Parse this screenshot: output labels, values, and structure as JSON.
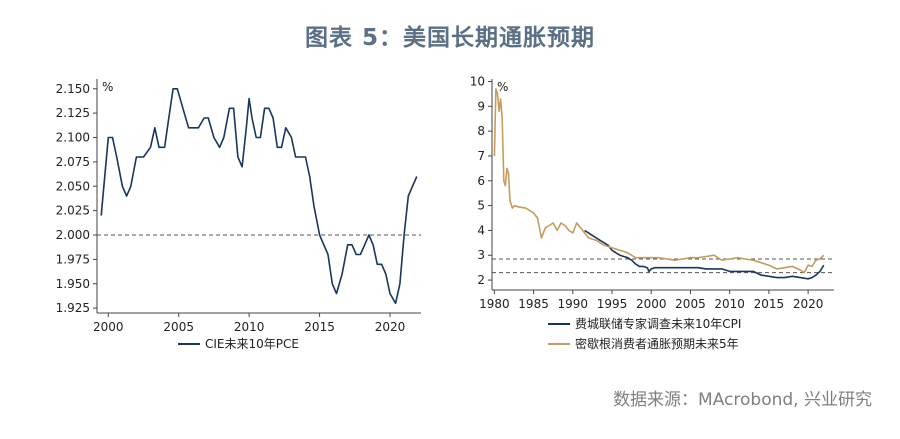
{
  "header": {
    "title": "图表 5：美国长期通胀预期"
  },
  "footer": {
    "source": "数据来源：MAcrobond, 兴业研究"
  },
  "chart_data": [
    {
      "type": "line",
      "ylabel": "%",
      "ylim": [
        1.92,
        2.16
      ],
      "xlim": [
        1999.2,
        2022.2
      ],
      "y_ticks": [
        "1.925",
        "1.950",
        "1.975",
        "2.000",
        "2.025",
        "2.050",
        "2.075",
        "2.100",
        "2.125",
        "2.150"
      ],
      "x_ticks": [
        "2000",
        "2005",
        "2010",
        "2015",
        "2020"
      ],
      "reference_lines": [
        2.0
      ],
      "legend_position": "bottom",
      "series": [
        {
          "name": "CIE未来10年PCE",
          "color": "#17375e",
          "points": [
            [
              1999.5,
              2.02
            ],
            [
              2000.0,
              2.1
            ],
            [
              2000.3,
              2.1
            ],
            [
              2000.6,
              2.08
            ],
            [
              2001.0,
              2.05
            ],
            [
              2001.3,
              2.04
            ],
            [
              2001.6,
              2.05
            ],
            [
              2002.0,
              2.08
            ],
            [
              2002.5,
              2.08
            ],
            [
              2003.0,
              2.09
            ],
            [
              2003.3,
              2.11
            ],
            [
              2003.6,
              2.09
            ],
            [
              2004.0,
              2.09
            ],
            [
              2004.3,
              2.12
            ],
            [
              2004.6,
              2.15
            ],
            [
              2004.9,
              2.15
            ],
            [
              2005.3,
              2.13
            ],
            [
              2005.7,
              2.11
            ],
            [
              2006.0,
              2.11
            ],
            [
              2006.4,
              2.11
            ],
            [
              2006.8,
              2.12
            ],
            [
              2007.1,
              2.12
            ],
            [
              2007.5,
              2.1
            ],
            [
              2007.9,
              2.09
            ],
            [
              2008.2,
              2.1
            ],
            [
              2008.6,
              2.13
            ],
            [
              2008.9,
              2.13
            ],
            [
              2009.2,
              2.08
            ],
            [
              2009.5,
              2.07
            ],
            [
              2009.8,
              2.11
            ],
            [
              2010.0,
              2.14
            ],
            [
              2010.2,
              2.12
            ],
            [
              2010.5,
              2.1
            ],
            [
              2010.8,
              2.1
            ],
            [
              2011.1,
              2.13
            ],
            [
              2011.4,
              2.13
            ],
            [
              2011.7,
              2.12
            ],
            [
              2012.0,
              2.09
            ],
            [
              2012.3,
              2.09
            ],
            [
              2012.6,
              2.11
            ],
            [
              2013.0,
              2.1
            ],
            [
              2013.3,
              2.08
            ],
            [
              2013.6,
              2.08
            ],
            [
              2014.0,
              2.08
            ],
            [
              2014.3,
              2.06
            ],
            [
              2014.6,
              2.03
            ],
            [
              2015.0,
              2.0
            ],
            [
              2015.3,
              1.99
            ],
            [
              2015.6,
              1.98
            ],
            [
              2015.9,
              1.95
            ],
            [
              2016.2,
              1.94
            ],
            [
              2016.6,
              1.96
            ],
            [
              2017.0,
              1.99
            ],
            [
              2017.3,
              1.99
            ],
            [
              2017.6,
              1.98
            ],
            [
              2017.9,
              1.98
            ],
            [
              2018.2,
              1.99
            ],
            [
              2018.5,
              2.0
            ],
            [
              2018.8,
              1.99
            ],
            [
              2019.1,
              1.97
            ],
            [
              2019.4,
              1.97
            ],
            [
              2019.7,
              1.96
            ],
            [
              2020.0,
              1.94
            ],
            [
              2020.4,
              1.93
            ],
            [
              2020.7,
              1.95
            ],
            [
              2021.0,
              2.0
            ],
            [
              2021.3,
              2.04
            ],
            [
              2021.6,
              2.05
            ],
            [
              2021.9,
              2.06
            ]
          ]
        }
      ]
    },
    {
      "type": "line",
      "ylabel": "%",
      "ylim": [
        1.6,
        10.1
      ],
      "xlim": [
        1979.7,
        2023.3
      ],
      "y_ticks": [
        "2",
        "3",
        "4",
        "5",
        "6",
        "7",
        "8",
        "9",
        "10"
      ],
      "x_ticks": [
        "1980",
        "1985",
        "1990",
        "1995",
        "2000",
        "2005",
        "2010",
        "2015",
        "2020"
      ],
      "reference_lines": [
        2.3,
        2.85
      ],
      "legend_position": "bottom",
      "series": [
        {
          "name": "费城联储专家调查未来10年CPI",
          "color": "#17375e",
          "points": [
            [
              1991.5,
              4.0
            ],
            [
              1992.0,
              3.9
            ],
            [
              1992.5,
              3.8
            ],
            [
              1993.0,
              3.7
            ],
            [
              1993.5,
              3.6
            ],
            [
              1994.0,
              3.5
            ],
            [
              1994.5,
              3.4
            ],
            [
              1995.0,
              3.2
            ],
            [
              1995.5,
              3.1
            ],
            [
              1996.0,
              3.0
            ],
            [
              1996.5,
              2.95
            ],
            [
              1997.0,
              2.9
            ],
            [
              1997.5,
              2.8
            ],
            [
              1998.0,
              2.65
            ],
            [
              1998.5,
              2.55
            ],
            [
              1999.0,
              2.55
            ],
            [
              1999.5,
              2.5
            ],
            [
              1999.7,
              2.35
            ],
            [
              2000.0,
              2.45
            ],
            [
              2000.5,
              2.5
            ],
            [
              2001.0,
              2.5
            ],
            [
              2002.0,
              2.5
            ],
            [
              2003.0,
              2.5
            ],
            [
              2004.0,
              2.5
            ],
            [
              2005.0,
              2.5
            ],
            [
              2006.0,
              2.5
            ],
            [
              2007.0,
              2.45
            ],
            [
              2008.0,
              2.45
            ],
            [
              2009.0,
              2.45
            ],
            [
              2010.0,
              2.35
            ],
            [
              2011.0,
              2.35
            ],
            [
              2012.0,
              2.35
            ],
            [
              2013.0,
              2.35
            ],
            [
              2014.0,
              2.2
            ],
            [
              2015.0,
              2.15
            ],
            [
              2016.0,
              2.1
            ],
            [
              2017.0,
              2.1
            ],
            [
              2018.0,
              2.15
            ],
            [
              2019.0,
              2.1
            ],
            [
              2020.0,
              2.05
            ],
            [
              2020.5,
              2.1
            ],
            [
              2021.0,
              2.2
            ],
            [
              2021.5,
              2.35
            ],
            [
              2022.0,
              2.6
            ]
          ]
        },
        {
          "name": "密歇根消费者通胀预期未来5年",
          "color": "#c69c5c",
          "points": [
            [
              1980.0,
              7.0
            ],
            [
              1980.2,
              9.7
            ],
            [
              1980.4,
              9.5
            ],
            [
              1980.6,
              8.8
            ],
            [
              1980.8,
              9.3
            ],
            [
              1981.0,
              8.5
            ],
            [
              1981.2,
              6.0
            ],
            [
              1981.4,
              5.8
            ],
            [
              1981.6,
              6.5
            ],
            [
              1981.8,
              6.3
            ],
            [
              1982.0,
              5.2
            ],
            [
              1982.3,
              4.9
            ],
            [
              1982.6,
              5.0
            ],
            [
              1983.0,
              4.95
            ],
            [
              1984.0,
              4.9
            ],
            [
              1985.0,
              4.7
            ],
            [
              1985.5,
              4.5
            ],
            [
              1986.0,
              3.7
            ],
            [
              1986.5,
              4.1
            ],
            [
              1987.0,
              4.2
            ],
            [
              1987.5,
              4.3
            ],
            [
              1988.0,
              4.0
            ],
            [
              1988.5,
              4.3
            ],
            [
              1989.0,
              4.2
            ],
            [
              1989.5,
              4.0
            ],
            [
              1990.0,
              3.9
            ],
            [
              1990.5,
              4.3
            ],
            [
              1991.0,
              4.1
            ],
            [
              1991.5,
              3.9
            ],
            [
              1992.0,
              3.7
            ],
            [
              1993.0,
              3.6
            ],
            [
              1994.0,
              3.4
            ],
            [
              1995.0,
              3.3
            ],
            [
              1996.0,
              3.2
            ],
            [
              1997.0,
              3.1
            ],
            [
              1998.0,
              2.9
            ],
            [
              1999.0,
              2.9
            ],
            [
              2000.0,
              2.9
            ],
            [
              2001.0,
              2.9
            ],
            [
              2002.0,
              2.85
            ],
            [
              2003.0,
              2.8
            ],
            [
              2004.0,
              2.85
            ],
            [
              2005.0,
              2.9
            ],
            [
              2006.0,
              2.9
            ],
            [
              2007.0,
              2.95
            ],
            [
              2008.0,
              3.0
            ],
            [
              2009.0,
              2.8
            ],
            [
              2010.0,
              2.85
            ],
            [
              2011.0,
              2.9
            ],
            [
              2012.0,
              2.85
            ],
            [
              2013.0,
              2.8
            ],
            [
              2014.0,
              2.7
            ],
            [
              2015.0,
              2.6
            ],
            [
              2016.0,
              2.45
            ],
            [
              2017.0,
              2.5
            ],
            [
              2018.0,
              2.55
            ],
            [
              2019.0,
              2.4
            ],
            [
              2019.5,
              2.3
            ],
            [
              2020.0,
              2.6
            ],
            [
              2020.5,
              2.55
            ],
            [
              2021.0,
              2.8
            ],
            [
              2021.5,
              2.85
            ],
            [
              2022.0,
              3.0
            ]
          ]
        }
      ]
    }
  ]
}
